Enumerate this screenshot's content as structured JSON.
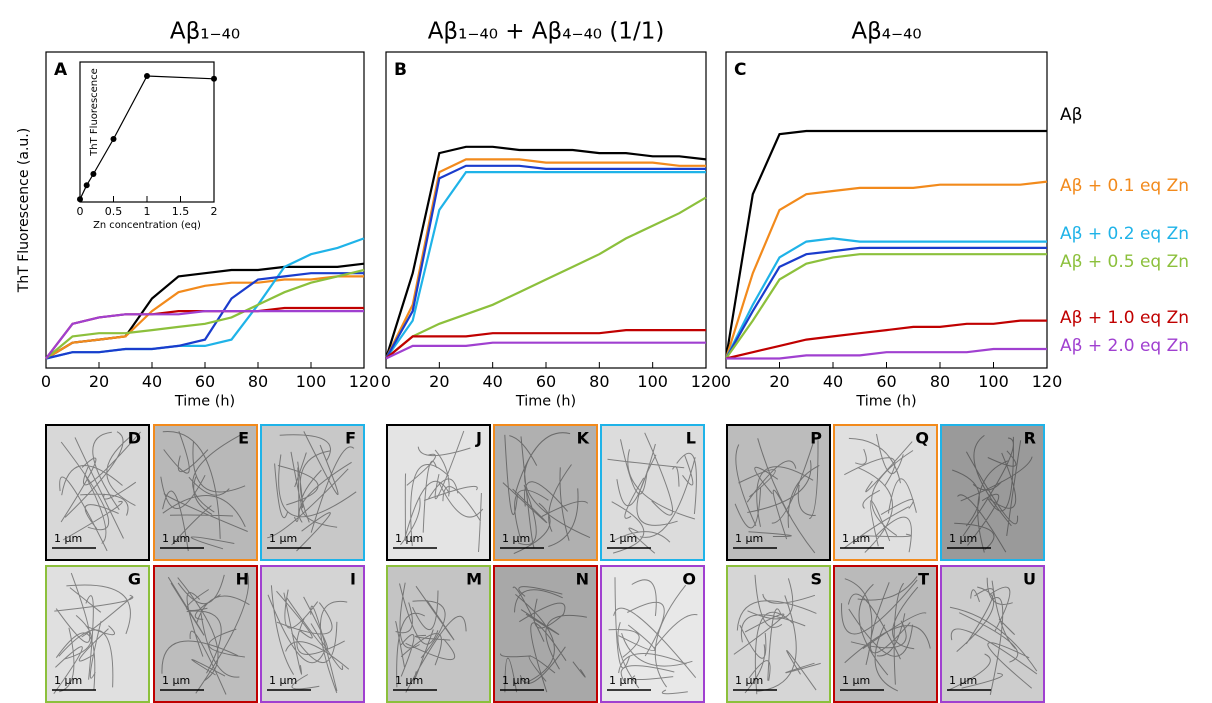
{
  "chart_data": [
    {
      "type": "line",
      "title": "Aβ₁₋₄₀",
      "panel": "A",
      "ylabel": "ThT Fluorescence (a.u.)",
      "xlabel": "Time (h)",
      "x": [
        0,
        10,
        20,
        30,
        40,
        50,
        60,
        70,
        80,
        90,
        100,
        110,
        120
      ],
      "xlim": [
        0,
        120
      ],
      "xticks": [
        0,
        20,
        40,
        60,
        80,
        100,
        120
      ],
      "ylim": [
        0,
        100
      ],
      "series": [
        {
          "color": "#000000",
          "values": [
            3,
            8,
            9,
            10,
            22,
            29,
            30,
            31,
            31,
            32,
            32,
            32,
            33
          ]
        },
        {
          "color": "#f28a1c",
          "values": [
            3,
            8,
            9,
            10,
            18,
            24,
            26,
            27,
            27,
            28,
            28,
            29,
            29
          ]
        },
        {
          "color": "#1fb3e8",
          "values": [
            3,
            5,
            5,
            6,
            6,
            7,
            7,
            9,
            20,
            32,
            36,
            38,
            41
          ]
        },
        {
          "color": "#1a3ccc",
          "values": [
            3,
            5,
            5,
            6,
            6,
            7,
            9,
            22,
            28,
            29,
            30,
            30,
            30
          ]
        },
        {
          "color": "#8cc03c",
          "values": [
            3,
            10,
            11,
            11,
            12,
            13,
            14,
            16,
            20,
            24,
            27,
            29,
            31
          ]
        },
        {
          "color": "#c00000",
          "values": [
            3,
            14,
            16,
            17,
            17,
            18,
            18,
            18,
            18,
            19,
            19,
            19,
            19
          ]
        },
        {
          "color": "#a040d0",
          "values": [
            3,
            14,
            16,
            17,
            17,
            17,
            18,
            18,
            18,
            18,
            18,
            18,
            18
          ]
        }
      ]
    },
    {
      "type": "line",
      "title": "Aβ₁₋₄₀ + Aβ₄₋₄₀ (1/1)",
      "panel": "B",
      "xlabel": "Time (h)",
      "x": [
        0,
        10,
        20,
        30,
        40,
        50,
        60,
        70,
        80,
        90,
        100,
        110,
        120
      ],
      "xlim": [
        0,
        120
      ],
      "xticks": [
        0,
        20,
        40,
        60,
        80,
        100,
        120
      ],
      "ylim": [
        0,
        100
      ],
      "series": [
        {
          "color": "#000000",
          "values": [
            3,
            30,
            68,
            70,
            70,
            69,
            69,
            69,
            68,
            68,
            67,
            67,
            66
          ]
        },
        {
          "color": "#f28a1c",
          "values": [
            3,
            20,
            62,
            66,
            66,
            66,
            65,
            65,
            65,
            65,
            65,
            64,
            64
          ]
        },
        {
          "color": "#1fb3e8",
          "values": [
            3,
            15,
            50,
            62,
            62,
            62,
            62,
            62,
            62,
            62,
            62,
            62,
            62
          ]
        },
        {
          "color": "#1a3ccc",
          "values": [
            3,
            18,
            60,
            64,
            64,
            64,
            63,
            63,
            63,
            63,
            63,
            63,
            63
          ]
        },
        {
          "color": "#8cc03c",
          "values": [
            3,
            10,
            14,
            17,
            20,
            24,
            28,
            32,
            36,
            41,
            45,
            49,
            54
          ]
        },
        {
          "color": "#c00000",
          "values": [
            3,
            10,
            10,
            10,
            11,
            11,
            11,
            11,
            11,
            12,
            12,
            12,
            12
          ]
        },
        {
          "color": "#a040d0",
          "values": [
            3,
            7,
            7,
            7,
            8,
            8,
            8,
            8,
            8,
            8,
            8,
            8,
            8
          ]
        }
      ]
    },
    {
      "type": "line",
      "title": "Aβ₄₋₄₀",
      "panel": "C",
      "xlabel": "Time (h)",
      "x": [
        0,
        10,
        20,
        30,
        40,
        50,
        60,
        70,
        80,
        90,
        100,
        110,
        120
      ],
      "xlim": [
        0,
        120
      ],
      "xticks": [
        0,
        20,
        40,
        60,
        80,
        100,
        120
      ],
      "ylim": [
        0,
        100
      ],
      "series": [
        {
          "name": "Aβ",
          "color": "#000000",
          "values": [
            3,
            55,
            74,
            75,
            75,
            75,
            75,
            75,
            75,
            75,
            75,
            75,
            75
          ]
        },
        {
          "name": "Aβ + 0.1 eq Zn",
          "color": "#f28a1c",
          "values": [
            3,
            30,
            50,
            55,
            56,
            57,
            57,
            57,
            58,
            58,
            58,
            58,
            59
          ]
        },
        {
          "name": "Aβ + 0.2 eq Zn",
          "color": "#1fb3e8",
          "values": [
            3,
            20,
            35,
            40,
            41,
            40,
            40,
            40,
            40,
            40,
            40,
            40,
            40
          ]
        },
        {
          "color": "#1a3ccc",
          "values": [
            3,
            18,
            32,
            36,
            37,
            38,
            38,
            38,
            38,
            38,
            38,
            38,
            38
          ]
        },
        {
          "name": "Aβ + 0.5 eq Zn",
          "color": "#8cc03c",
          "values": [
            3,
            15,
            28,
            33,
            35,
            36,
            36,
            36,
            36,
            36,
            36,
            36,
            36
          ]
        },
        {
          "name": "Aβ + 1.0 eq Zn",
          "color": "#c00000",
          "values": [
            3,
            5,
            7,
            9,
            10,
            11,
            12,
            13,
            13,
            14,
            14,
            15,
            15
          ]
        },
        {
          "name": "Aβ + 2.0 eq Zn",
          "color": "#a040d0",
          "values": [
            3,
            3,
            3,
            4,
            4,
            4,
            5,
            5,
            5,
            5,
            6,
            6,
            6
          ]
        }
      ]
    },
    {
      "type": "line",
      "markers": true,
      "xlabel": "Zn concentration (eq)",
      "ylabel": "ThT Fluorescence",
      "x": [
        0,
        0.1,
        0.2,
        0.5,
        1,
        2
      ],
      "xlim": [
        0,
        2
      ],
      "xticks": [
        0,
        0.5,
        1,
        1.5,
        2
      ],
      "ylim": [
        0,
        100
      ],
      "series": [
        {
          "color": "#000000",
          "values": [
            2,
            12,
            20,
            45,
            90,
            88
          ]
        }
      ]
    }
  ],
  "micrographs": [
    {
      "label": "D",
      "scale": "1 μm",
      "border": "#000000",
      "background": "#d8d8d8"
    },
    {
      "label": "E",
      "scale": "1 μm",
      "border": "#f28a1c",
      "background": "#b8b8b8"
    },
    {
      "label": "F",
      "scale": "1 μm",
      "border": "#1fb3e8",
      "background": "#c8c8c8"
    },
    {
      "label": "J",
      "scale": "1 μm",
      "border": "#000000",
      "background": "#e4e4e4"
    },
    {
      "label": "K",
      "scale": "1 μm",
      "border": "#f28a1c",
      "background": "#b0b0b0"
    },
    {
      "label": "L",
      "scale": "1 μm",
      "border": "#1fb3e8",
      "background": "#dcdcdc"
    },
    {
      "label": "P",
      "scale": "1 μm",
      "border": "#000000",
      "background": "#bcbcbc"
    },
    {
      "label": "Q",
      "scale": "1 μm",
      "border": "#f28a1c",
      "background": "#e0e0e0"
    },
    {
      "label": "R",
      "scale": "1 μm",
      "border": "#1fb3e8",
      "background": "#9a9a9a"
    },
    {
      "label": "G",
      "scale": "1 μm",
      "border": "#8cc03c",
      "background": "#e0e0e0"
    },
    {
      "label": "H",
      "scale": "1 μm",
      "border": "#c00000",
      "background": "#bdbdbd"
    },
    {
      "label": "I",
      "scale": "1 μm",
      "border": "#a040d0",
      "background": "#d4d4d4"
    },
    {
      "label": "M",
      "scale": "1 μm",
      "border": "#8cc03c",
      "background": "#c4c4c4"
    },
    {
      "label": "N",
      "scale": "1 μm",
      "border": "#c00000",
      "background": "#a8a8a8"
    },
    {
      "label": "O",
      "scale": "1 μm",
      "border": "#a040d0",
      "background": "#e8e8e8"
    },
    {
      "label": "S",
      "scale": "1 μm",
      "border": "#8cc03c",
      "background": "#d6d6d6"
    },
    {
      "label": "T",
      "scale": "1 μm",
      "border": "#c00000",
      "background": "#bababa"
    },
    {
      "label": "U",
      "scale": "1 μm",
      "border": "#a040d0",
      "background": "#cdcdcd"
    }
  ]
}
